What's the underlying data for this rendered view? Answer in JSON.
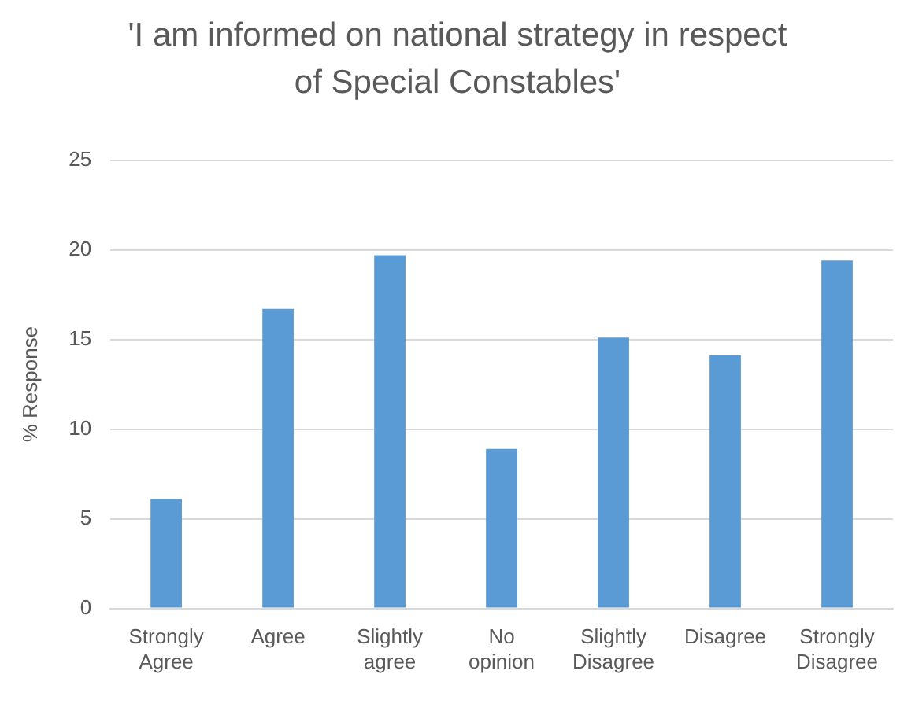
{
  "chart_data": {
    "type": "bar",
    "title": "'I am informed on national strategy in respect of Special Constables'",
    "ylabel": "% Response",
    "categories": [
      "Strongly Agree",
      "Agree",
      "Slightly agree",
      "No opinion",
      "Slightly Disagree",
      "Disagree",
      "Strongly Disagree"
    ],
    "values": [
      6.1,
      16.7,
      19.7,
      8.9,
      15.1,
      14.1,
      19.4
    ],
    "color": "#5b9bd5",
    "ylim": [
      0,
      25
    ],
    "yticks": [
      0,
      5,
      10,
      15,
      20,
      25
    ],
    "grid": "y"
  }
}
